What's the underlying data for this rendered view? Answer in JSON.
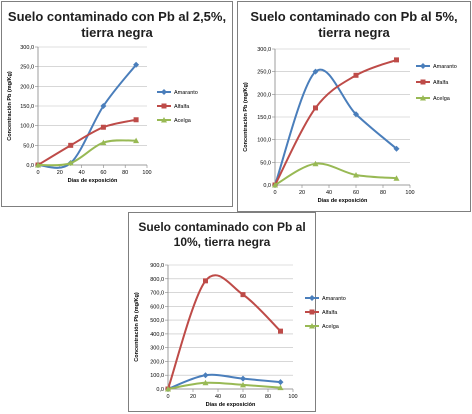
{
  "colors": {
    "Amaranto": "#4a7ebb",
    "Alfalfa": "#be4b48",
    "Acelga": "#98b954",
    "grid": "#bfbfbf",
    "axis": "#868686"
  },
  "chart_data": [
    {
      "type": "line",
      "title": "Suelo contaminado con Pb al 2,5%, tierra negra",
      "xlabel": "Días de exposición",
      "ylabel": "Concentración Pb (mg/Kg)",
      "xlim": [
        0,
        100
      ],
      "ylim": [
        0,
        300
      ],
      "x_ticks": [
        "0",
        "20",
        "40",
        "60",
        "80",
        "100"
      ],
      "y_ticks": [
        "0,0",
        "50,0",
        "100,0",
        "150,0",
        "200,0",
        "250,0",
        "300,0"
      ],
      "legend_position": "right",
      "x": [
        0,
        30,
        60,
        90
      ],
      "series": [
        {
          "name": "Amaranto",
          "values": [
            0,
            5,
            150,
            255
          ]
        },
        {
          "name": "Alfalfa",
          "values": [
            0,
            50,
            96,
            115
          ]
        },
        {
          "name": "Acelga",
          "values": [
            0,
            5,
            57,
            62
          ]
        }
      ]
    },
    {
      "type": "line",
      "title": "Suelo contaminado con Pb al 5%, tierra negra",
      "xlabel": "Días de exposición",
      "ylabel": "Concentración Pb (mg/Kg)",
      "xlim": [
        0,
        100
      ],
      "ylim": [
        0,
        300
      ],
      "x_ticks": [
        "0",
        "20",
        "40",
        "60",
        "80",
        "100"
      ],
      "y_ticks": [
        "0,0",
        "50,0",
        "100,0",
        "150,0",
        "200,0",
        "250,0",
        "300,0"
      ],
      "legend_position": "right",
      "x": [
        0,
        30,
        60,
        90
      ],
      "series": [
        {
          "name": "Amaranto",
          "values": [
            0,
            250,
            156,
            80
          ]
        },
        {
          "name": "Alfalfa",
          "values": [
            0,
            170,
            242,
            276
          ]
        },
        {
          "name": "Acelga",
          "values": [
            0,
            47,
            22,
            15
          ]
        }
      ]
    },
    {
      "type": "line",
      "title": "Suelo contaminado con Pb al 10%, tierra negra",
      "xlabel": "Días de exposición",
      "ylabel": "Concentración Pb (mg/Kg)",
      "xlim": [
        0,
        100
      ],
      "ylim": [
        0,
        900
      ],
      "x_ticks": [
        "0",
        "20",
        "40",
        "60",
        "80",
        "100"
      ],
      "y_ticks": [
        "0,0",
        "100,0",
        "200,0",
        "300,0",
        "400,0",
        "500,0",
        "600,0",
        "700,0",
        "800,0",
        "900,0"
      ],
      "legend_position": "right",
      "x": [
        0,
        30,
        60,
        90
      ],
      "series": [
        {
          "name": "Amaranto",
          "values": [
            0,
            100,
            75,
            50
          ]
        },
        {
          "name": "Alfalfa",
          "values": [
            0,
            785,
            685,
            420
          ]
        },
        {
          "name": "Acelga",
          "values": [
            0,
            45,
            30,
            10
          ]
        }
      ]
    }
  ]
}
